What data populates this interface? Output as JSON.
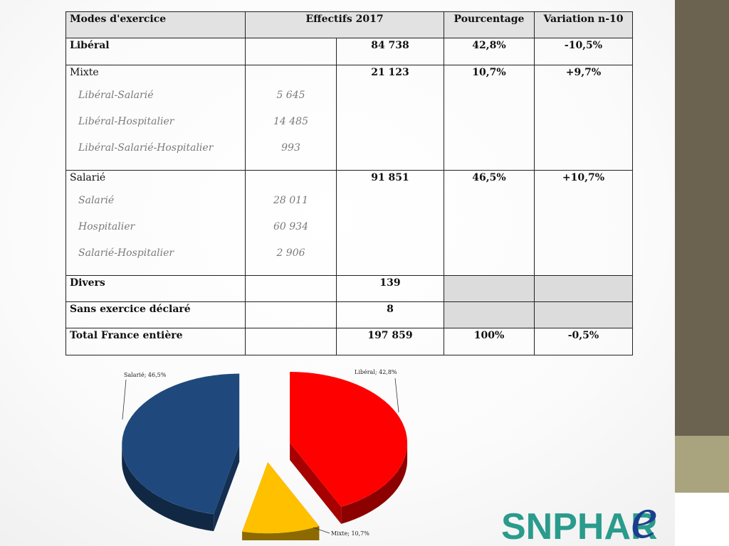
{
  "table": {
    "headers": [
      "Modes d'exercice",
      "Effectifs 2017",
      "Pourcentage",
      "Variation n-10"
    ],
    "rows": [
      {
        "label": "Libéral",
        "total": "84 738",
        "pct": "42,8%",
        "var": "-10,5%"
      },
      {
        "label": "Mixte",
        "total": "21 123",
        "pct": "10,7%",
        "var": "+9,7%",
        "sub": [
          {
            "label": "Libéral-Salarié",
            "value": "5 645"
          },
          {
            "label": "Libéral-Hospitalier",
            "value": "14 485"
          },
          {
            "label": "Libéral-Salarié-Hospitalier",
            "value": "993"
          }
        ]
      },
      {
        "label": "Salarié",
        "total": "91 851",
        "pct": "46,5%",
        "var": "+10,7%",
        "sub": [
          {
            "label": "Salarié",
            "value": "28 011"
          },
          {
            "label": "Hospitalier",
            "value": "60 934"
          },
          {
            "label": "Salarié-Hospitalier",
            "value": "2 906"
          }
        ]
      },
      {
        "label": "Divers",
        "total": "139"
      },
      {
        "label": "Sans exercice déclaré",
        "total": "8"
      },
      {
        "label": "Total France entière",
        "total": "197 859",
        "pct": "100%",
        "var": "-0,5%"
      }
    ]
  },
  "chart_data": {
    "type": "pie",
    "slices": [
      {
        "label": "Libéral; 42,8%",
        "value": 42.8,
        "color": "#ff0000"
      },
      {
        "label": "Mixte; 10,7%",
        "value": 10.7,
        "color": "#ffc000"
      },
      {
        "label": "Salarié; 46,5%",
        "value": 46.5,
        "color": "#1f497d"
      }
    ]
  },
  "logo": {
    "text": "SNPHAR",
    "accent": "e",
    "color": "#2a9b8c",
    "accent_color": "#1b3f8c"
  }
}
